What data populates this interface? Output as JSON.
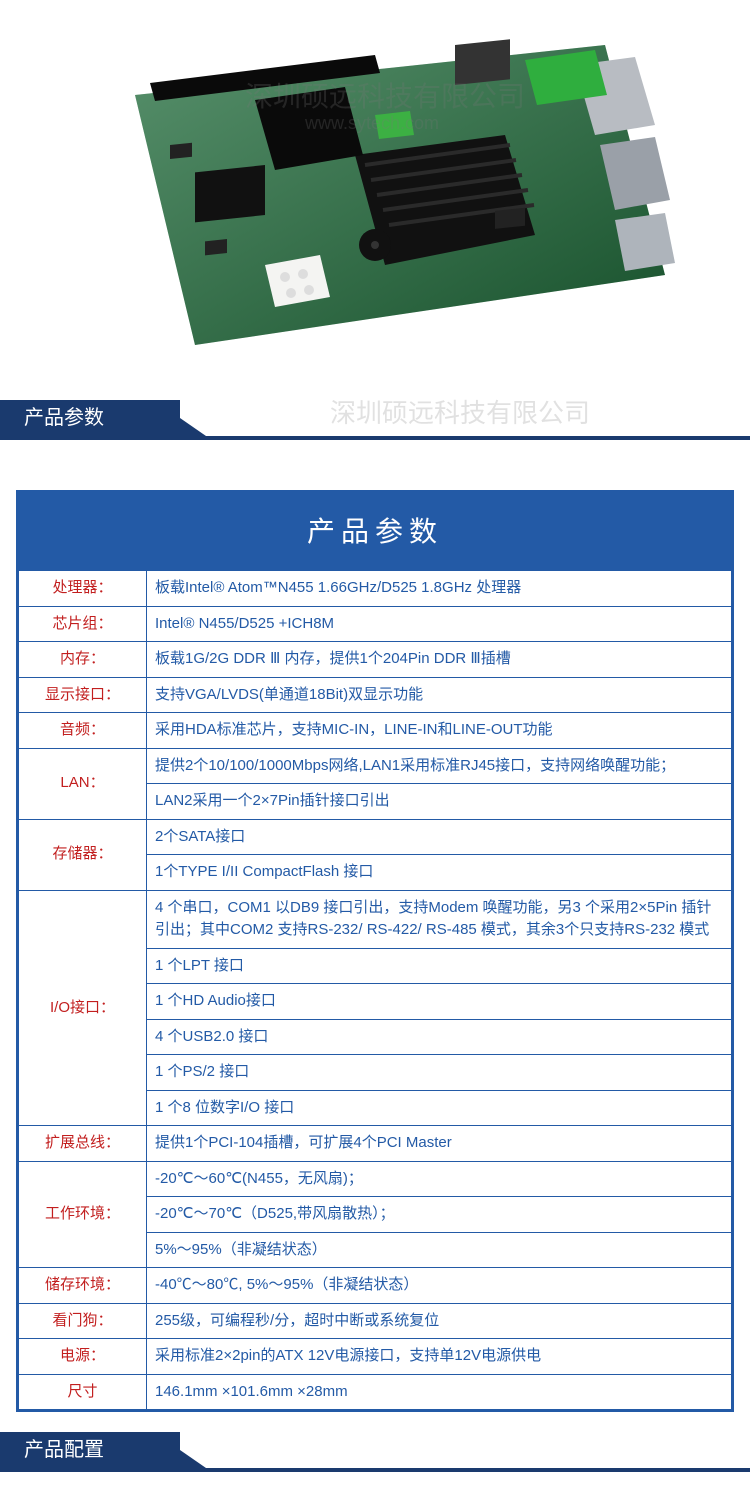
{
  "watermark_main": "深圳硕远科技有限公司",
  "watermark_sub": "www.sytech.com",
  "section1_title": "产品参数",
  "spec_title": "产品参数",
  "section2_title": "产品配置",
  "colors": {
    "band_blue": "#1a3a6e",
    "table_border": "#235aa6",
    "label_red": "#c21f1f",
    "value_blue": "#235aa6"
  },
  "rows": [
    {
      "label": "处理器：",
      "values": [
        "板载Intel® Atom™N455 1.66GHz/D525 1.8GHz 处理器"
      ]
    },
    {
      "label": "芯片组：",
      "values": [
        "Intel® N455/D525 +ICH8M"
      ]
    },
    {
      "label": "内存：",
      "values": [
        "板载1G/2G DDR Ⅲ 内存，提供1个204Pin DDR Ⅲ插槽"
      ]
    },
    {
      "label": "显示接口：",
      "values": [
        "支持VGA/LVDS(单通道18Bit)双显示功能"
      ]
    },
    {
      "label": "音频：",
      "values": [
        "采用HDA标准芯片，支持MIC-IN，LINE-IN和LINE-OUT功能"
      ]
    },
    {
      "label": "LAN：",
      "values": [
        "提供2个10/100/1000Mbps网络,LAN1采用标准RJ45接口，支持网络唤醒功能；",
        "LAN2采用一个2×7Pin插针接口引出"
      ]
    },
    {
      "label": "存储器：",
      "values": [
        "2个SATA接口",
        "1个TYPE I/II CompactFlash 接口"
      ]
    },
    {
      "label": "I/O接口：",
      "values": [
        "4 个串口，COM1 以DB9 接口引出，支持Modem 唤醒功能，另3 个采用2×5Pin 插针引出；其中COM2 支持RS-232/ RS-422/ RS-485 模式，其余3个只支持RS-232 模式",
        "1 个LPT 接口",
        "1 个HD Audio接口",
        "4 个USB2.0 接口",
        "1 个PS/2 接口",
        "1 个8 位数字I/O 接口"
      ]
    },
    {
      "label": "扩展总线：",
      "values": [
        "提供1个PCI-104插槽，可扩展4个PCI Master"
      ]
    },
    {
      "label": "工作环境：",
      "values": [
        "-20℃～60℃(N455，无风扇)；",
        "-20℃～70℃（D525,带风扇散热）；",
        "5%～95%（非凝结状态）"
      ]
    },
    {
      "label": "储存环境：",
      "values": [
        "-40℃～80℃, 5%～95%（非凝结状态）"
      ]
    },
    {
      "label": "看门狗：",
      "values": [
        "255级，可编程秒/分，超时中断或系统复位"
      ]
    },
    {
      "label": "电源：",
      "values": [
        "采用标准2×2pin的ATX 12V电源接口，支持单12V电源供电"
      ]
    },
    {
      "label": "尺寸",
      "values": [
        "146.1mm ×101.6mm ×28mm"
      ]
    }
  ]
}
